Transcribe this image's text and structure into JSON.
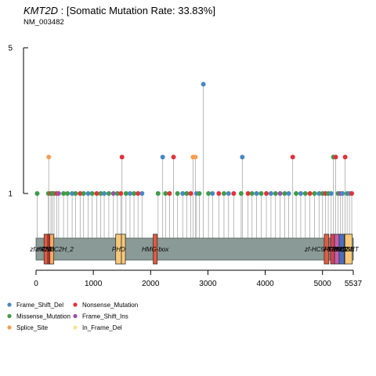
{
  "header": {
    "gene": "KMT2D",
    "rate_text": " : [Somatic Mutation Rate: 33.83%]",
    "transcript": "NM_003482"
  },
  "chart_data": {
    "type": "lollipop",
    "protein_length": 5537,
    "x_ticks": [
      0,
      1000,
      2000,
      3000,
      4000,
      5000,
      5537
    ],
    "y_ticks": [
      1,
      5
    ],
    "ylim": [
      0,
      5
    ],
    "domains": [
      {
        "name": "zf-CW",
        "start": 140,
        "end": 225,
        "color": "#e45a3c"
      },
      {
        "name": "PHD",
        "start": 205,
        "end": 260,
        "color": "#c9313a"
      },
      {
        "name": "zf-HC5HC2H_2",
        "start": 240,
        "end": 310,
        "color": "#f7a95c"
      },
      {
        "name": "PHD",
        "start": 1390,
        "end": 1490,
        "color": "#f7c87a"
      },
      {
        "name": "PHD",
        "start": 1490,
        "end": 1560,
        "color": "#f7c87a"
      },
      {
        "name": "HMG-box",
        "start": 2045,
        "end": 2115,
        "color": "#e45a3c"
      },
      {
        "name": "zf-HC5HC2H_2",
        "start": 5030,
        "end": 5110,
        "color": "#e45a3c"
      },
      {
        "name": "FYRN",
        "start": 5140,
        "end": 5210,
        "color": "#d9434e"
      },
      {
        "name": "FYRC",
        "start": 5210,
        "end": 5290,
        "color": "#c65cae"
      },
      {
        "name": "SET",
        "start": 5290,
        "end": 5380,
        "color": "#4a6fbf"
      },
      {
        "name": "Post-SET",
        "start": 5380,
        "end": 5410,
        "color": "#c9313a"
      },
      {
        "name": "WIN",
        "start": 5390,
        "end": 5520,
        "color": "#f7c87a"
      }
    ],
    "domain_labels": [
      {
        "text": "zf-CW",
        "pos": 140
      },
      {
        "text": "PHD",
        "pos": 205
      },
      {
        "text": "zf-HC5HC2H_2",
        "pos": 275
      },
      {
        "text": "PHD",
        "pos": 1440
      },
      {
        "text": "HMG-box",
        "pos": 2080
      },
      {
        "text": "zf-HC5HC2H_2",
        "pos": 5070
      },
      {
        "text": "FYRN",
        "pos": 5175
      },
      {
        "text": "FYRC",
        "pos": 5250
      },
      {
        "text": "SET",
        "pos": 5335
      },
      {
        "text": "Post-SET",
        "pos": 5395
      },
      {
        "text": "WIN",
        "pos": 5450
      }
    ],
    "legend": [
      {
        "label": "Frame_Shift_Del",
        "color": "#4a86c5"
      },
      {
        "label": "Nonsense_Mutation",
        "color": "#e3313b"
      },
      {
        "label": "Missense_Mutation",
        "color": "#3e9b48"
      },
      {
        "label": "Frame_Shift_Ins",
        "color": "#9c4fa8"
      },
      {
        "label": "Splice_Site",
        "color": "#f79d50"
      },
      {
        "label": "In_Frame_Del",
        "color": "#fbe38e"
      }
    ],
    "mutations": [
      {
        "pos": 20,
        "count": 1,
        "type": "Missense_Mutation"
      },
      {
        "pos": 215,
        "count": 1,
        "type": "Missense_Mutation"
      },
      {
        "pos": 222,
        "count": 2,
        "type": "Splice_Site"
      },
      {
        "pos": 260,
        "count": 1,
        "type": "Nonsense_Mutation"
      },
      {
        "pos": 285,
        "count": 1,
        "type": "Missense_Mutation"
      },
      {
        "pos": 315,
        "count": 1,
        "type": "Missense_Mutation"
      },
      {
        "pos": 360,
        "count": 1,
        "type": "Nonsense_Mutation"
      },
      {
        "pos": 395,
        "count": 1,
        "type": "Frame_Shift_Ins"
      },
      {
        "pos": 480,
        "count": 1,
        "type": "Missense_Mutation"
      },
      {
        "pos": 550,
        "count": 1,
        "type": "Missense_Mutation"
      },
      {
        "pos": 630,
        "count": 1,
        "type": "Frame_Shift_Del"
      },
      {
        "pos": 690,
        "count": 1,
        "type": "Missense_Mutation"
      },
      {
        "pos": 770,
        "count": 1,
        "type": "Nonsense_Mutation"
      },
      {
        "pos": 830,
        "count": 1,
        "type": "Missense_Mutation"
      },
      {
        "pos": 910,
        "count": 1,
        "type": "Frame_Shift_Del"
      },
      {
        "pos": 980,
        "count": 1,
        "type": "Missense_Mutation"
      },
      {
        "pos": 1060,
        "count": 1,
        "type": "Nonsense_Mutation"
      },
      {
        "pos": 1130,
        "count": 1,
        "type": "Missense_Mutation"
      },
      {
        "pos": 1190,
        "count": 1,
        "type": "Frame_Shift_Del"
      },
      {
        "pos": 1270,
        "count": 1,
        "type": "Missense_Mutation"
      },
      {
        "pos": 1350,
        "count": 1,
        "type": "Frame_Shift_Ins"
      },
      {
        "pos": 1420,
        "count": 1,
        "type": "Missense_Mutation"
      },
      {
        "pos": 1480,
        "count": 1,
        "type": "Nonsense_Mutation"
      },
      {
        "pos": 1500,
        "count": 2,
        "type": "Nonsense_Mutation"
      },
      {
        "pos": 1570,
        "count": 1,
        "type": "Missense_Mutation"
      },
      {
        "pos": 1640,
        "count": 1,
        "type": "Frame_Shift_Del"
      },
      {
        "pos": 1710,
        "count": 1,
        "type": "Missense_Mutation"
      },
      {
        "pos": 1780,
        "count": 1,
        "type": "Nonsense_Mutation"
      },
      {
        "pos": 1850,
        "count": 1,
        "type": "Frame_Shift_Del"
      },
      {
        "pos": 2130,
        "count": 1,
        "type": "Missense_Mutation"
      },
      {
        "pos": 2210,
        "count": 2,
        "type": "Frame_Shift_Del"
      },
      {
        "pos": 2260,
        "count": 1,
        "type": "Missense_Mutation"
      },
      {
        "pos": 2330,
        "count": 1,
        "type": "Nonsense_Mutation"
      },
      {
        "pos": 2400,
        "count": 2,
        "type": "Nonsense_Mutation"
      },
      {
        "pos": 2470,
        "count": 1,
        "type": "Missense_Mutation"
      },
      {
        "pos": 2560,
        "count": 1,
        "type": "Frame_Shift_Del"
      },
      {
        "pos": 2630,
        "count": 1,
        "type": "Missense_Mutation"
      },
      {
        "pos": 2700,
        "count": 1,
        "type": "Nonsense_Mutation"
      },
      {
        "pos": 2740,
        "count": 2,
        "type": "Splice_Site"
      },
      {
        "pos": 2780,
        "count": 2,
        "type": "Splice_Site"
      },
      {
        "pos": 2800,
        "count": 1,
        "type": "Frame_Shift_Del"
      },
      {
        "pos": 2850,
        "count": 1,
        "type": "Missense_Mutation"
      },
      {
        "pos": 2920,
        "count": 4,
        "type": "Frame_Shift_Del"
      },
      {
        "pos": 3010,
        "count": 1,
        "type": "Missense_Mutation"
      },
      {
        "pos": 3080,
        "count": 1,
        "type": "Frame_Shift_Del"
      },
      {
        "pos": 3190,
        "count": 1,
        "type": "Nonsense_Mutation"
      },
      {
        "pos": 3280,
        "count": 1,
        "type": "Missense_Mutation"
      },
      {
        "pos": 3360,
        "count": 1,
        "type": "Frame_Shift_Del"
      },
      {
        "pos": 3450,
        "count": 1,
        "type": "Nonsense_Mutation"
      },
      {
        "pos": 3580,
        "count": 1,
        "type": "Missense_Mutation"
      },
      {
        "pos": 3600,
        "count": 2,
        "type": "Frame_Shift_Del"
      },
      {
        "pos": 3700,
        "count": 1,
        "type": "Nonsense_Mutation"
      },
      {
        "pos": 3770,
        "count": 1,
        "type": "Missense_Mutation"
      },
      {
        "pos": 3850,
        "count": 1,
        "type": "Frame_Shift_Del"
      },
      {
        "pos": 3930,
        "count": 1,
        "type": "Missense_Mutation"
      },
      {
        "pos": 4020,
        "count": 1,
        "type": "Nonsense_Mutation"
      },
      {
        "pos": 4100,
        "count": 1,
        "type": "Frame_Shift_Del"
      },
      {
        "pos": 4180,
        "count": 1,
        "type": "Missense_Mutation"
      },
      {
        "pos": 4260,
        "count": 1,
        "type": "Frame_Shift_Ins"
      },
      {
        "pos": 4340,
        "count": 1,
        "type": "Missense_Mutation"
      },
      {
        "pos": 4410,
        "count": 1,
        "type": "Frame_Shift_Del"
      },
      {
        "pos": 4480,
        "count": 2,
        "type": "Nonsense_Mutation"
      },
      {
        "pos": 4540,
        "count": 1,
        "type": "Missense_Mutation"
      },
      {
        "pos": 4620,
        "count": 1,
        "type": "Frame_Shift_Del"
      },
      {
        "pos": 4700,
        "count": 1,
        "type": "Missense_Mutation"
      },
      {
        "pos": 4780,
        "count": 1,
        "type": "Nonsense_Mutation"
      },
      {
        "pos": 4860,
        "count": 1,
        "type": "Missense_Mutation"
      },
      {
        "pos": 4940,
        "count": 1,
        "type": "Frame_Shift_Del"
      },
      {
        "pos": 5000,
        "count": 1,
        "type": "Missense_Mutation"
      },
      {
        "pos": 5050,
        "count": 1,
        "type": "Nonsense_Mutation"
      },
      {
        "pos": 5100,
        "count": 1,
        "type": "Missense_Mutation"
      },
      {
        "pos": 5150,
        "count": 1,
        "type": "Frame_Shift_Del"
      },
      {
        "pos": 5190,
        "count": 2,
        "type": "Missense_Mutation"
      },
      {
        "pos": 5230,
        "count": 2,
        "type": "Nonsense_Mutation"
      },
      {
        "pos": 5270,
        "count": 1,
        "type": "Missense_Mutation"
      },
      {
        "pos": 5310,
        "count": 1,
        "type": "Frame_Shift_Ins"
      },
      {
        "pos": 5350,
        "count": 1,
        "type": "Frame_Shift_Del"
      },
      {
        "pos": 5395,
        "count": 2,
        "type": "Nonsense_Mutation"
      },
      {
        "pos": 5430,
        "count": 1,
        "type": "Missense_Mutation"
      },
      {
        "pos": 5470,
        "count": 1,
        "type": "Frame_Shift_Del"
      },
      {
        "pos": 5510,
        "count": 1,
        "type": "Nonsense_Mutation"
      }
    ]
  }
}
